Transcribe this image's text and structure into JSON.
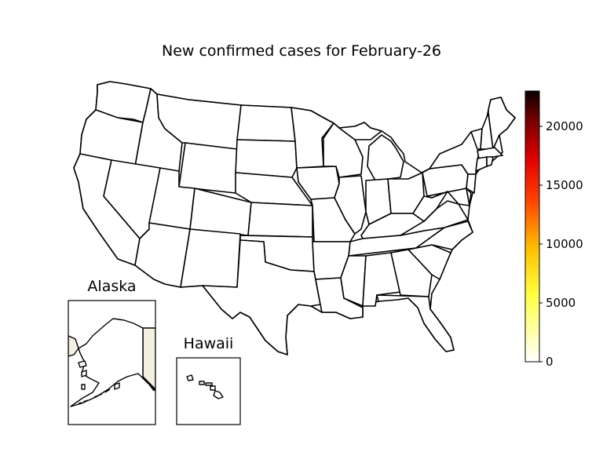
{
  "title": "New confirmed cases for February-26",
  "insets": {
    "alaska": {
      "label": "Alaska"
    },
    "hawaii": {
      "label": "Hawaii"
    }
  },
  "colorbar": {
    "colormap": "hot_r",
    "min": 0,
    "max": 23000,
    "ticks": [
      "0",
      "5000",
      "10000",
      "15000",
      "20000"
    ],
    "tick_values": [
      0,
      5000,
      10000,
      15000,
      20000
    ]
  },
  "colors": {
    "state_fill": "#ffffff",
    "canada_fill": "#f3f0e1",
    "border": "#000000"
  }
}
